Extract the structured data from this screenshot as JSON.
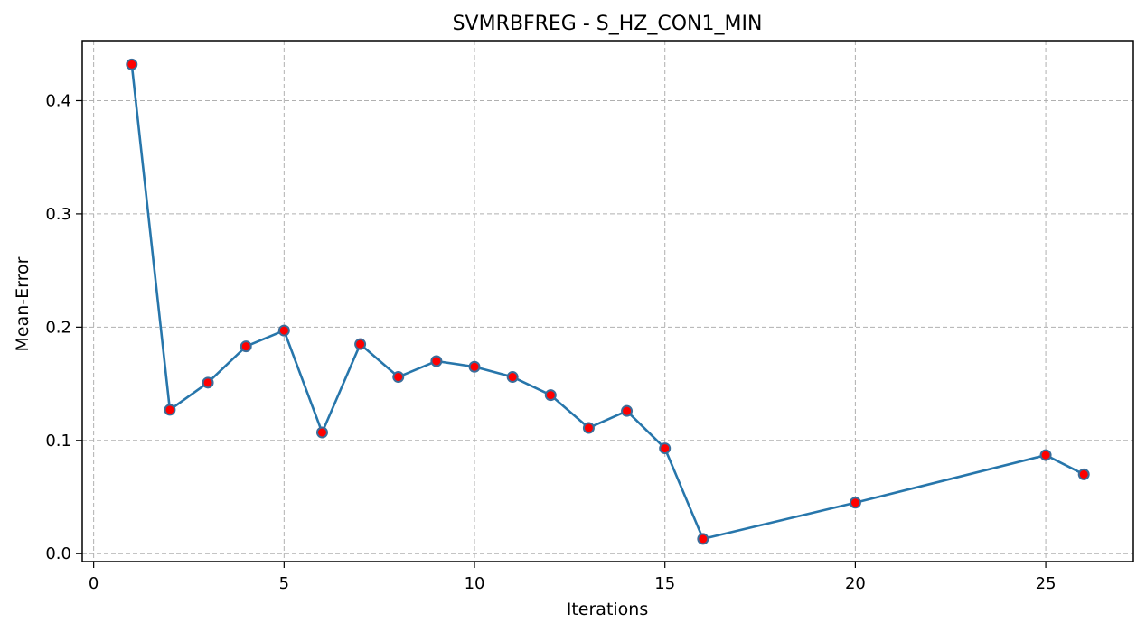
{
  "chart_data": {
    "type": "line",
    "title": "SVMRBFREG - S_HZ_CON1_MIN",
    "xlabel": "Iterations",
    "ylabel": "Mean-Error",
    "xlim": [
      -0.3,
      27.3
    ],
    "ylim": [
      -0.007,
      0.453
    ],
    "xticks": [
      0,
      5,
      10,
      15,
      20,
      25
    ],
    "yticks": [
      0.0,
      0.1,
      0.2,
      0.3,
      0.4
    ],
    "xtick_labels": [
      "0",
      "5",
      "10",
      "15",
      "20",
      "25"
    ],
    "ytick_labels": [
      "0.0",
      "0.1",
      "0.2",
      "0.3",
      "0.4"
    ],
    "grid": true,
    "legend": "none",
    "line_color": "#2776ab",
    "marker_face_color": "#ff0000",
    "marker_edge_color": "#3a6d9a",
    "series": [
      {
        "x": [
          1,
          2,
          3,
          4,
          5,
          6,
          7,
          8,
          9,
          10,
          11,
          12,
          13,
          14,
          15,
          16,
          20,
          25,
          26
        ],
        "values": [
          0.432,
          0.127,
          0.151,
          0.183,
          0.197,
          0.107,
          0.185,
          0.156,
          0.17,
          0.165,
          0.156,
          0.14,
          0.111,
          0.126,
          0.093,
          0.013,
          0.045,
          0.087,
          0.07
        ]
      }
    ]
  }
}
